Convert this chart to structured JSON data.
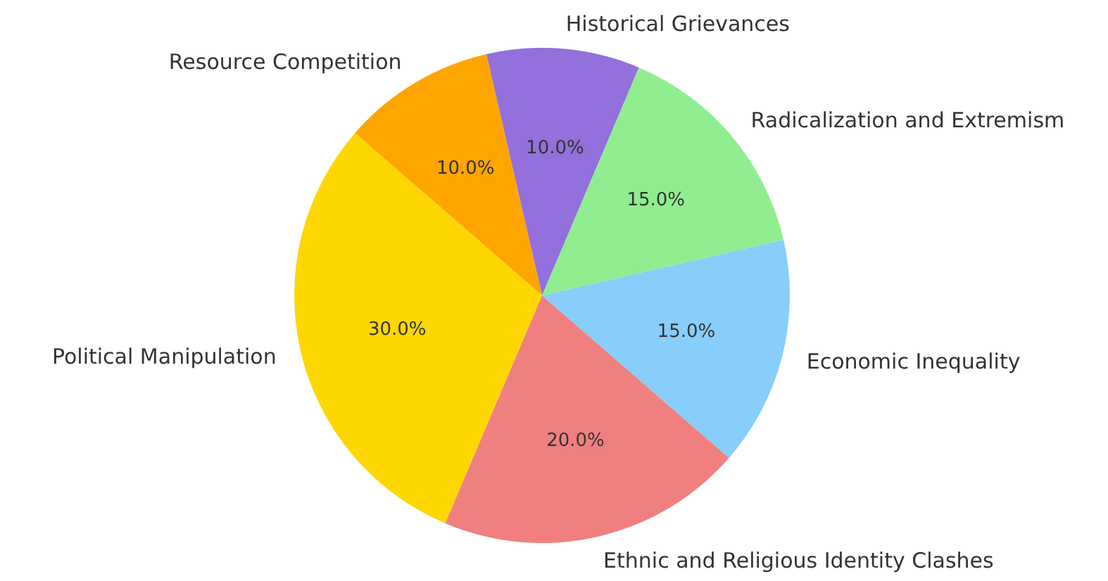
{
  "chart_data": {
    "type": "pie",
    "categories": [
      "Political Manipulation",
      "Ethnic and Religious Identity Clashes",
      "Economic Inequality",
      "Radicalization and Extremism",
      "Historical Grievances",
      "Resource Competition"
    ],
    "values": [
      30,
      20,
      15,
      15,
      10,
      10
    ],
    "colors": [
      "#ffd700",
      "#f08080",
      "#87cefa",
      "#90ee90",
      "#9370db",
      "#ffa500"
    ],
    "value_labels": [
      "30.0%",
      "20.0%",
      "15.0%",
      "15.0%",
      "10.0%",
      "10.0%"
    ]
  }
}
